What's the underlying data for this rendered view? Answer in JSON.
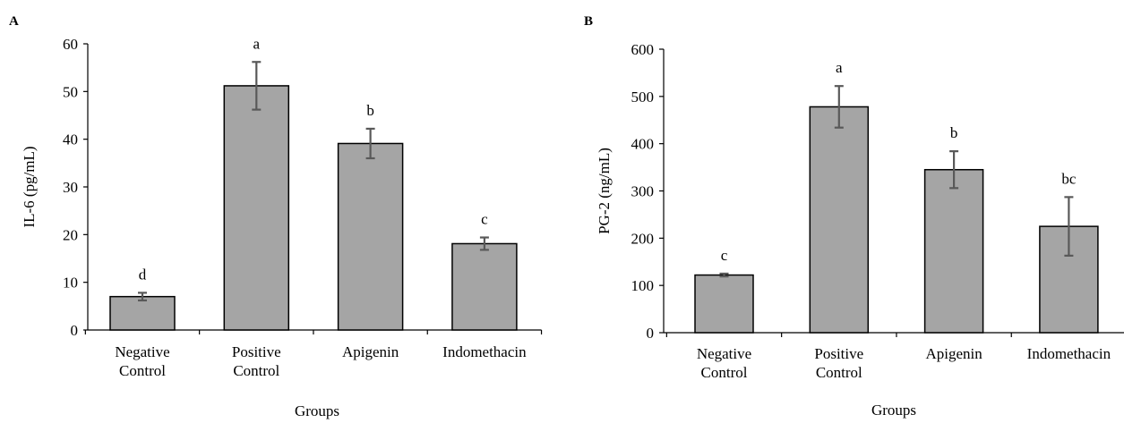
{
  "chart_data": [
    {
      "panel": "A",
      "type": "bar",
      "categories": [
        [
          "Negative",
          "Control"
        ],
        [
          "Positive",
          "Control"
        ],
        [
          "Apigenin"
        ],
        [
          "Indomethacin"
        ]
      ],
      "values": [
        7.0,
        51.2,
        39.1,
        18.1
      ],
      "errors": [
        0.8,
        5.0,
        3.1,
        1.3
      ],
      "significance": [
        "d",
        "a",
        "b",
        "c"
      ],
      "ylabel": "IL-6 (pg/mL)",
      "xlabel": "Groups",
      "ylim": [
        0,
        60
      ],
      "yticks": [
        "0",
        "10",
        "20",
        "30",
        "40",
        "50",
        "60"
      ],
      "grid": false,
      "bar_color": "#a5a5a5",
      "error_color": "#595959"
    },
    {
      "panel": "B",
      "type": "bar",
      "categories": [
        [
          "Negative",
          "Control"
        ],
        [
          "Positive",
          "Control"
        ],
        [
          "Apigenin"
        ],
        [
          "Indomethacin"
        ]
      ],
      "values": [
        122,
        478,
        345,
        225
      ],
      "errors": [
        3,
        44,
        39,
        62
      ],
      "significance": [
        "c",
        "a",
        "b",
        "bc"
      ],
      "ylabel": "PG-2 (ng/mL)",
      "xlabel": "Groups",
      "ylim": [
        0,
        600
      ],
      "yticks": [
        "0",
        "100",
        "200",
        "300",
        "400",
        "500",
        "600"
      ],
      "grid": false,
      "bar_color": "#a5a5a5",
      "error_color": "#595959"
    }
  ]
}
